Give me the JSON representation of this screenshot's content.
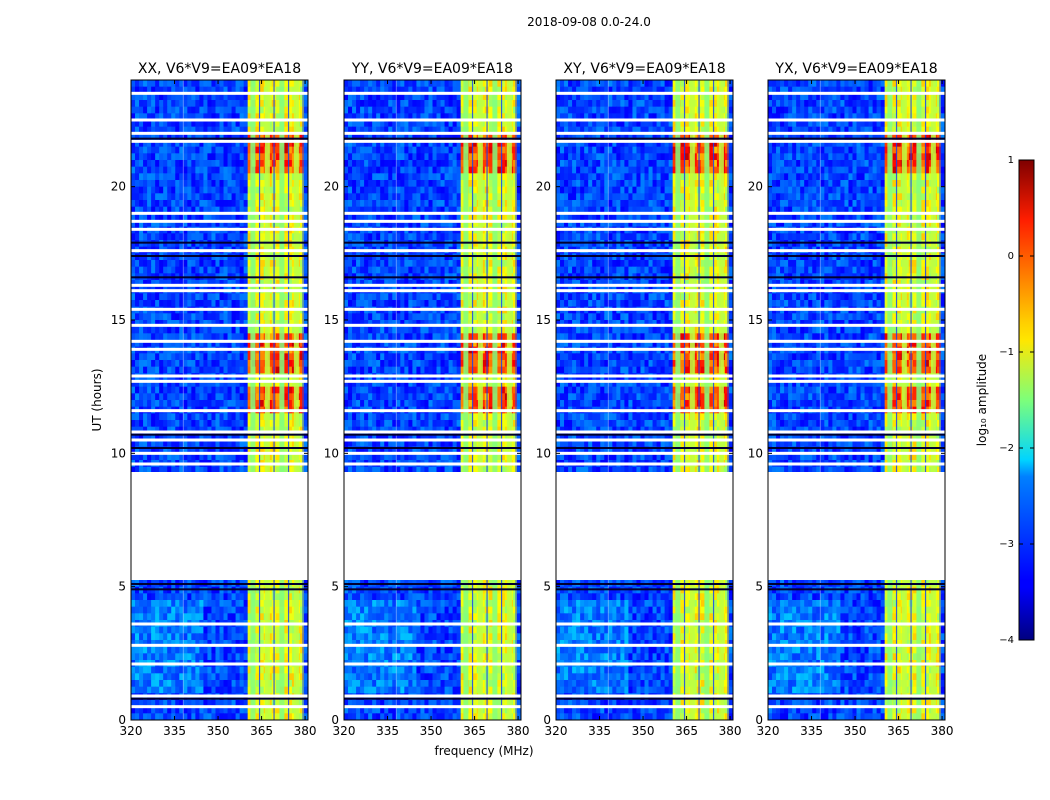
{
  "chart_data": {
    "type": "heatmap",
    "suptitle": "2018-09-08 0.0-24.0",
    "panels": [
      {
        "title": "XX, V6*V9=EA09*EA18"
      },
      {
        "title": "YY, V6*V9=EA09*EA18"
      },
      {
        "title": "XY, V6*V9=EA09*EA18"
      },
      {
        "title": "YX, V6*V9=EA09*EA18"
      }
    ],
    "xlabel": "frequency (MHz)",
    "ylabel": "UT (hours)",
    "xlim": [
      320,
      381
    ],
    "ylim": [
      0,
      24
    ],
    "xticks": [
      320,
      335,
      350,
      365,
      380
    ],
    "yticks": [
      0,
      5,
      10,
      15,
      20
    ],
    "colorbar": {
      "label": "log₁₀ amplitude",
      "range": [
        -4,
        1
      ],
      "ticks": [
        "1",
        "0",
        "−1",
        "−2",
        "−3",
        "−4"
      ],
      "colormap": "jet"
    },
    "flagged_time_range": [
      5.25,
      9.3
    ],
    "signal_band": [
      360,
      379
    ],
    "bright_channels": [
      362,
      367,
      372,
      377
    ]
  }
}
